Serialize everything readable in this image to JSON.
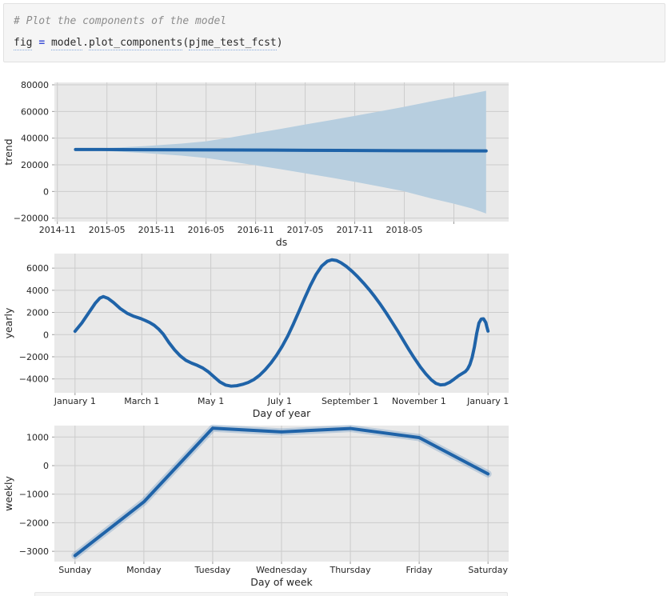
{
  "code_cell": {
    "comment": "# Plot the components of the model",
    "tokens": [
      {
        "text": "fig",
        "underline": true
      },
      {
        "text": " "
      },
      {
        "text": "=",
        "operator": true
      },
      {
        "text": " "
      },
      {
        "text": "model",
        "underline": true
      },
      {
        "text": "."
      },
      {
        "text": "plot_components",
        "underline": true
      },
      {
        "text": "("
      },
      {
        "text": "pjme_test_fcst",
        "underline": true
      },
      {
        "text": ")"
      }
    ]
  },
  "colors": {
    "line": "#1f63a8",
    "band": "#b7cedf",
    "halo": "rgba(31,99,168,0.22)",
    "plot_bg": "#e9e9e9",
    "grid": "#cccccc",
    "tick": "#9a9a9a",
    "text": "#262626"
  },
  "chart_data": [
    {
      "type": "line",
      "name": "trend",
      "ylabel": "trend",
      "xlabel": "ds",
      "x_unit": "months since 2014-11",
      "x_domain": [
        -0.36,
        54.63
      ],
      "xticks": [
        0,
        6,
        12,
        18,
        24,
        30,
        36,
        42,
        48
      ],
      "xticklabels": [
        "2014-11",
        "2015-05",
        "2015-11",
        "2016-05",
        "2016-11",
        "2017-05",
        "2017-11",
        "2018-05",
        ""
      ],
      "yticks": [
        80000,
        60000,
        40000,
        20000,
        0,
        -20000
      ],
      "ylim": [
        -22600,
        81800
      ],
      "grid": true,
      "legend": "none",
      "series": [
        {
          "name": "trend",
          "points": [
            [
              2.2,
              31500
            ],
            [
              10,
              31350
            ],
            [
              18,
              31200
            ],
            [
              26,
              31000
            ],
            [
              34,
              30800
            ],
            [
              42,
              30600
            ],
            [
              51.9,
              30400
            ]
          ]
        }
      ],
      "band": {
        "x": [
          2.2,
          6.2,
          10.6,
          15,
          18,
          21.1,
          24,
          27.1,
          30,
          33.2,
          36.2,
          39.2,
          42,
          45.3,
          47.9,
          50.2,
          51.9
        ],
        "upper": [
          31700,
          32600,
          34000,
          35900,
          37600,
          40600,
          43800,
          47000,
          50200,
          53600,
          56900,
          60300,
          63500,
          67600,
          70700,
          73400,
          75500
        ],
        "lower": [
          31400,
          30300,
          28800,
          26900,
          25100,
          22300,
          19600,
          16600,
          13600,
          10300,
          7000,
          3500,
          100,
          -5300,
          -9000,
          -12800,
          -16500
        ]
      }
    },
    {
      "type": "line",
      "name": "yearly",
      "ylabel": "yearly",
      "xlabel": "Day of year",
      "x_unit": "day of year",
      "x_domain": [
        -18.25,
        383.25
      ],
      "xticks": [
        0,
        59,
        120,
        181,
        243,
        304,
        365
      ],
      "xticklabels": [
        "January 1",
        "March 1",
        "May 1",
        "July 1",
        "September 1",
        "November 1",
        "January 1"
      ],
      "yticks": [
        6000,
        4000,
        2000,
        0,
        -2000,
        -4000
      ],
      "ylim": [
        -5250,
        7310
      ],
      "grid": true,
      "legend": "none",
      "series": [
        {
          "name": "yearly",
          "points": [
            [
              0,
              300
            ],
            [
              6,
              1050
            ],
            [
              12,
              1950
            ],
            [
              18,
              2850
            ],
            [
              22,
              3300
            ],
            [
              25,
              3430
            ],
            [
              29,
              3280
            ],
            [
              34,
              2900
            ],
            [
              40,
              2350
            ],
            [
              46,
              1930
            ],
            [
              52,
              1650
            ],
            [
              58,
              1450
            ],
            [
              62,
              1280
            ],
            [
              66,
              1090
            ],
            [
              70,
              840
            ],
            [
              74,
              490
            ],
            [
              78,
              40
            ],
            [
              83,
              -720
            ],
            [
              88,
              -1380
            ],
            [
              93,
              -1920
            ],
            [
              98,
              -2320
            ],
            [
              103,
              -2570
            ],
            [
              108,
              -2770
            ],
            [
              113,
              -3020
            ],
            [
              118,
              -3370
            ],
            [
              123,
              -3820
            ],
            [
              128,
              -4270
            ],
            [
              133,
              -4550
            ],
            [
              138,
              -4650
            ],
            [
              143,
              -4610
            ],
            [
              148,
              -4490
            ],
            [
              153,
              -4320
            ],
            [
              158,
              -4060
            ],
            [
              163,
              -3680
            ],
            [
              168,
              -3180
            ],
            [
              173,
              -2580
            ],
            [
              178,
              -1880
            ],
            [
              183,
              -1070
            ],
            [
              188,
              -130
            ],
            [
              193,
              960
            ],
            [
              198,
              2120
            ],
            [
              203,
              3300
            ],
            [
              208,
              4430
            ],
            [
              213,
              5420
            ],
            [
              218,
              6180
            ],
            [
              223,
              6620
            ],
            [
              227,
              6750
            ],
            [
              231,
              6690
            ],
            [
              235,
              6490
            ],
            [
              240,
              6140
            ],
            [
              245,
              5700
            ],
            [
              250,
              5200
            ],
            [
              255,
              4650
            ],
            [
              260,
              4060
            ],
            [
              265,
              3410
            ],
            [
              270,
              2710
            ],
            [
              275,
              1960
            ],
            [
              280,
              1160
            ],
            [
              285,
              360
            ],
            [
              290,
              -490
            ],
            [
              295,
              -1340
            ],
            [
              300,
              -2140
            ],
            [
              305,
              -2890
            ],
            [
              310,
              -3540
            ],
            [
              315,
              -4090
            ],
            [
              319,
              -4400
            ],
            [
              323,
              -4540
            ],
            [
              327,
              -4500
            ],
            [
              331,
              -4310
            ],
            [
              335,
              -4020
            ],
            [
              339,
              -3710
            ],
            [
              343,
              -3460
            ],
            [
              345,
              -3330
            ],
            [
              347,
              -3100
            ],
            [
              349,
              -2700
            ],
            [
              351,
              -2050
            ],
            [
              353,
              -1100
            ],
            [
              355,
              100
            ],
            [
              357,
              1050
            ],
            [
              359,
              1400
            ],
            [
              361,
              1430
            ],
            [
              363,
              1100
            ],
            [
              364,
              700
            ],
            [
              365,
              320
            ]
          ]
        }
      ]
    },
    {
      "type": "line",
      "name": "weekly",
      "ylabel": "weekly",
      "xlabel": "Day of week",
      "x_unit": "day of week",
      "categories": [
        "Sunday",
        "Monday",
        "Tuesday",
        "Wednesday",
        "Thursday",
        "Friday",
        "Saturday"
      ],
      "x_domain": [
        -0.3,
        6.3
      ],
      "xticks": [
        0,
        1,
        2,
        3,
        4,
        5,
        6
      ],
      "xticklabels": [
        "Sunday",
        "Monday",
        "Tuesday",
        "Wednesday",
        "Thursday",
        "Friday",
        "Saturday"
      ],
      "yticks": [
        1000,
        0,
        -1000,
        -2000,
        -3000
      ],
      "ylim": [
        -3360,
        1400
      ],
      "grid": true,
      "legend": "none",
      "halo": true,
      "series": [
        {
          "name": "weekly",
          "points": [
            [
              0,
              -3150
            ],
            [
              1,
              -1270
            ],
            [
              2,
              1310
            ],
            [
              3,
              1180
            ],
            [
              4,
              1300
            ],
            [
              5,
              980
            ],
            [
              6,
              -290
            ]
          ]
        }
      ]
    }
  ]
}
